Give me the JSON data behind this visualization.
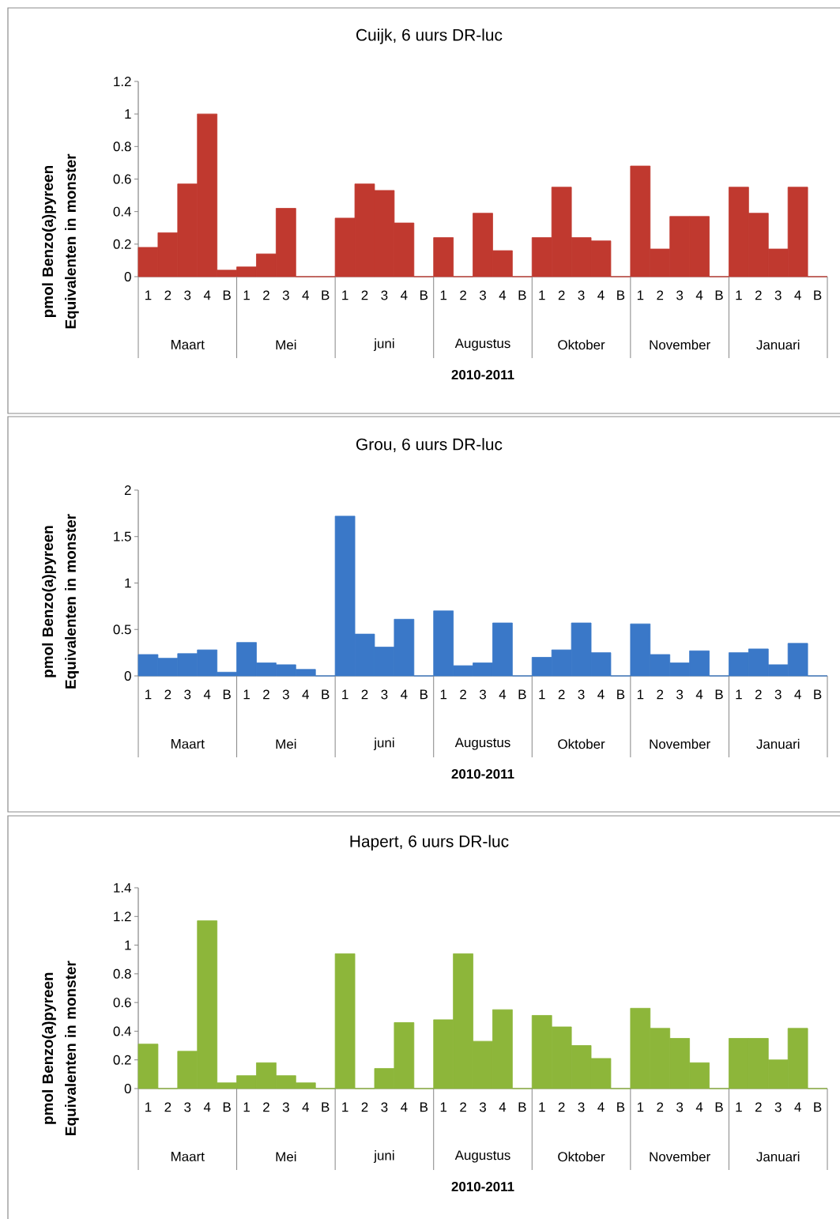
{
  "chart_data": [
    {
      "type": "bar",
      "title": "Cuijk, 6 uurs DR-luc",
      "xlabel": "2010-2011",
      "ylabel": "pmol Benzo(a)pyreen Equivalenten in monster",
      "categories": [
        "1",
        "2",
        "3",
        "4",
        "B",
        "1",
        "2",
        "3",
        "4",
        "B",
        "1",
        "2",
        "3",
        "4",
        "B",
        "1",
        "2",
        "3",
        "4",
        "B",
        "1",
        "2",
        "3",
        "4",
        "B",
        "1",
        "2",
        "3",
        "4",
        "B",
        "1",
        "2",
        "3",
        "4",
        "B"
      ],
      "annotations": [
        "Maart",
        "Mei",
        "juni",
        "Augustus",
        "Oktober",
        "November",
        "Januari"
      ],
      "values": [
        0.18,
        0.27,
        0.57,
        1.0,
        0.04,
        0.06,
        0.14,
        0.42,
        0,
        0,
        0.36,
        0.57,
        0.53,
        0.33,
        0,
        0.24,
        0,
        0.39,
        0.16,
        0,
        0.24,
        0.55,
        0.24,
        0.22,
        0,
        0.68,
        0.17,
        0.37,
        0.37,
        0,
        0.55,
        0.39,
        0.17,
        0.55,
        0
      ],
      "color": "#c0392f",
      "ylim": [
        0,
        1.2
      ],
      "yticks": [
        0,
        0.2,
        0.4,
        0.6,
        0.8,
        1,
        1.2
      ]
    },
    {
      "type": "bar",
      "title": "Grou, 6 uurs DR-luc",
      "xlabel": "2010-2011",
      "ylabel": "pmol Benzo(a)pyreen Equivalenten in monster",
      "categories": [
        "1",
        "2",
        "3",
        "4",
        "B",
        "1",
        "2",
        "3",
        "4",
        "B",
        "1",
        "2",
        "3",
        "4",
        "B",
        "1",
        "2",
        "3",
        "4",
        "B",
        "1",
        "2",
        "3",
        "4",
        "B",
        "1",
        "2",
        "3",
        "4",
        "B",
        "1",
        "2",
        "3",
        "4",
        "B"
      ],
      "annotations": [
        "Maart",
        "Mei",
        "juni",
        "Augustus",
        "Oktober",
        "November",
        "Januari"
      ],
      "values": [
        0.23,
        0.19,
        0.24,
        0.28,
        0.04,
        0.36,
        0.14,
        0.12,
        0.07,
        0,
        1.72,
        0.45,
        0.31,
        0.61,
        0,
        0.7,
        0.11,
        0.14,
        0.57,
        0,
        0.2,
        0.28,
        0.57,
        0.25,
        0,
        0.56,
        0.23,
        0.14,
        0.27,
        0,
        0.25,
        0.29,
        0.12,
        0.35,
        0
      ],
      "color": "#3a78c8",
      "ylim": [
        0,
        2
      ],
      "yticks": [
        0,
        0.5,
        1,
        1.5,
        2
      ]
    },
    {
      "type": "bar",
      "title": "Hapert, 6 uurs DR-luc",
      "xlabel": "2010-2011",
      "ylabel": "pmol Benzo(a)pyreen Equivalenten in monster",
      "categories": [
        "1",
        "2",
        "3",
        "4",
        "B",
        "1",
        "2",
        "3",
        "4",
        "B",
        "1",
        "2",
        "3",
        "4",
        "B",
        "1",
        "2",
        "3",
        "4",
        "B",
        "1",
        "2",
        "3",
        "4",
        "B",
        "1",
        "2",
        "3",
        "4",
        "B",
        "1",
        "2",
        "3",
        "4",
        "B"
      ],
      "annotations": [
        "Maart",
        "Mei",
        "juni",
        "Augustus",
        "Oktober",
        "November",
        "Januari"
      ],
      "values": [
        0.31,
        0,
        0.26,
        1.17,
        0.04,
        0.09,
        0.18,
        0.09,
        0.04,
        0,
        0.94,
        0,
        0.14,
        0.46,
        0,
        0.48,
        0.94,
        0.33,
        0.55,
        0,
        0.51,
        0.43,
        0.3,
        0.21,
        0,
        0.56,
        0.42,
        0.35,
        0.18,
        0,
        0.35,
        0.35,
        0.2,
        0.42,
        0
      ],
      "color": "#8db63a",
      "ylim": [
        0,
        1.4
      ],
      "yticks": [
        0,
        0.2,
        0.4,
        0.6,
        0.8,
        1,
        1.2,
        1.4
      ]
    }
  ]
}
